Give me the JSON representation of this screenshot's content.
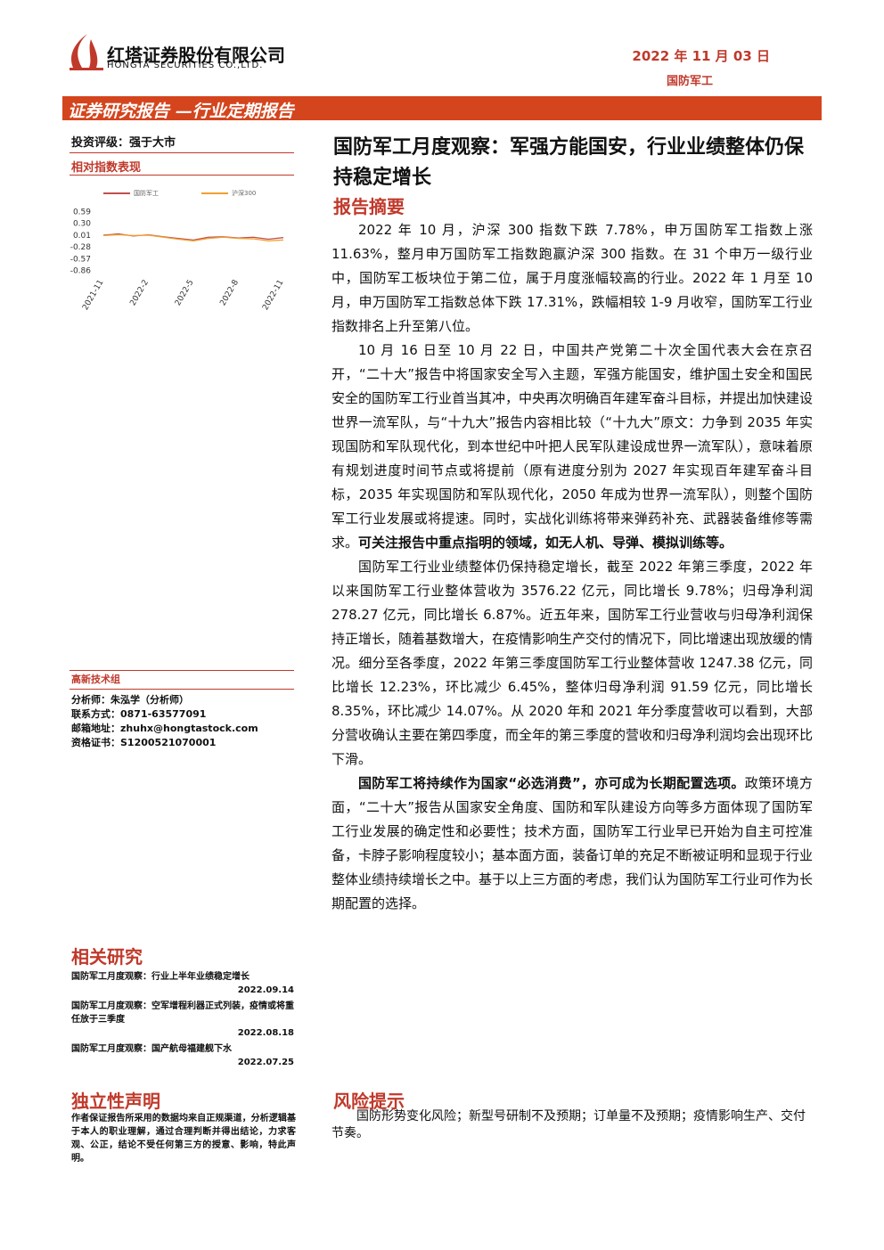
{
  "header": {
    "company": "红塔证券股份有限公司",
    "company_en": "HONGTA SECURITIES CO.,LTD.",
    "date": "2022 年 11 月 03 日",
    "sector": "国防军工"
  },
  "banner": "证券研究报告 —行业定期报告",
  "sidebar": {
    "rating": "投资评级：强于大市",
    "chart_heading": "相对指数表现",
    "group": "高新技术组",
    "analyst": [
      "分析师：朱泓学（分析师）",
      "联系方式：0871-63577091",
      "邮箱地址：zhuhx@hongtastock.com",
      "资格证书：S1200521070001"
    ],
    "related_heading": "相关研究",
    "related": [
      {
        "title": "国防军工月度观察：行业上半年业绩稳定增长",
        "date": "2022.09.14"
      },
      {
        "title": "国防军工月度观察：空军增程利器正式列装，疫情或将重任放于三季度",
        "date": "2022.08.18"
      },
      {
        "title": "国防军工月度观察：国产航母福建舰下水",
        "date": "2022.07.25"
      }
    ],
    "statement_heading": "独立性声明",
    "statement": "作者保证报告所采用的数据均来自正规渠道，分析逻辑基于本人的职业理解，通过合理判断并得出结论，力求客观、公正，结论不受任何第三方的授意、影响，特此声明。"
  },
  "chart_data": {
    "type": "line",
    "categories": [
      "2021-11",
      null,
      null,
      "2022-2",
      null,
      null,
      "2022-5",
      null,
      null,
      "2022-8",
      null,
      null,
      "2022-11"
    ],
    "series": [
      {
        "name": "国防军工",
        "color": "#c0504d",
        "values": [
          0.02,
          0.05,
          0.0,
          0.03,
          -0.02,
          -0.06,
          -0.1,
          -0.03,
          -0.02,
          -0.05,
          -0.03,
          -0.08,
          -0.04
        ]
      },
      {
        "name": "沪深300",
        "color": "#f0a030",
        "values": [
          0.01,
          0.03,
          0.01,
          0.02,
          -0.03,
          -0.08,
          -0.12,
          -0.06,
          -0.03,
          -0.06,
          -0.07,
          -0.12,
          -0.1
        ]
      }
    ],
    "ylim": [
      -0.86,
      0.59
    ],
    "yticks": [
      0.59,
      {
        "value": 0.3,
        "label": "0.30"
      },
      0.01,
      -0.28,
      -0.57,
      -0.86
    ]
  },
  "main": {
    "title": "国防军工月度观察：军强方能国安，行业业绩整体仍保持稳定增长",
    "summary_heading": "报告摘要",
    "p1": "2022 年 10 月，沪深 300 指数下跌 7.78%，申万国防军工指数上涨 11.63%，整月申万国防军工指数跑赢沪深 300 指数。在 31 个申万一级行业中，国防军工板块位于第二位，属于月度涨幅较高的行业。2022 年 1 月至 10 月，申万国防军工指数总体下跌 17.31%，跌幅相较 1-9 月收窄，国防军工行业指数排名上升至第八位。",
    "p2": "10 月 16 日至 10 月 22 日，中国共产党第二十次全国代表大会在京召开，“二十大”报告中将国家安全写入主题，军强方能国安，维护国土安全和国民安全的国防军工行业首当其冲，中央再次明确百年建军奋斗目标，并提出加快建设世界一流军队，与“十九大”报告内容相比较（“十九大”原文：力争到 2035 年实现国防和军队现代化，到本世纪中叶把人民军队建设成世界一流军队），意味着原有规划进度时间节点或将提前（原有进度分别为 2027 年实现百年建军奋斗目标，2035 年实现国防和军队现代化，2050 年成为世界一流军队），则整个国防军工行业发展或将提速。同时，实战化训练将带来弹药补充、武器装备维修等需求。",
    "p2_bold": "可关注报告中重点指明的领域，如无人机、导弹、模拟训练等。",
    "p3": "国防军工行业业绩整体仍保持稳定增长，截至 2022 年第三季度，2022 年以来国防军工行业整体营收为 3576.22 亿元，同比增长 9.78%；归母净利润 278.27 亿元，同比增长 6.87%。近五年来，国防军工行业营收与归母净利润保持正增长，随着基数增大，在疫情影响生产交付的情况下，同比增速出现放缓的情况。细分至各季度，2022 年第三季度国防军工行业整体营收 1247.38 亿元，同比增长 12.23%，环比减少 6.45%，整体归母净利润 91.59 亿元，同比增长 8.35%，环比减少 14.07%。从 2020 年和 2021 年分季度营收可以看到，大部分营收确认主要在第四季度，而全年的第三季度的营收和归母净利润均会出现环比下滑。",
    "p4_bold": "国防军工将持续作为国家“必选消费”，亦可成为长期配置选项。",
    "p4": "政策环境方面，“二十大”报告从国家安全角度、国防和军队建设方向等多方面体现了国防军工行业发展的确定性和必要性；技术方面，国防军工行业早已开始为自主可控准备，卡脖子影响程度较小；基本面方面，装备订单的充足不断被证明和显现于行业整体业绩持续增长之中。基于以上三方面的考虑，我们认为国防军工行业可作为长期配置的选择。",
    "risk_heading": "风险提示",
    "risk": "国防形势变化风险；新型号研制不及预期；订单量不及预期；疫情影响生产、交付节奏。"
  }
}
